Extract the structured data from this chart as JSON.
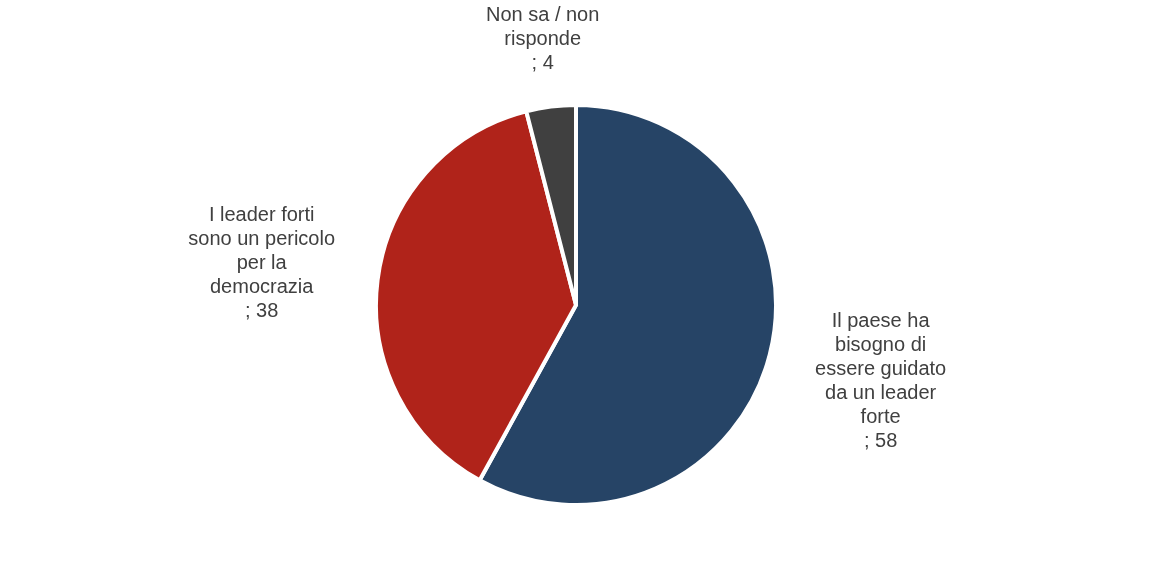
{
  "chart_data": {
    "type": "pie",
    "categories": [
      "Il paese ha bisogno di essere guidato da un leader forte",
      "I leader forti sono un pericolo per la democrazia",
      "Non sa / non risponde"
    ],
    "values": [
      58,
      38,
      4
    ],
    "colors": [
      "#264466",
      "#b0231a",
      "#404040"
    ],
    "value_labels": [
      "; 58",
      "; 38",
      "; 4"
    ]
  }
}
